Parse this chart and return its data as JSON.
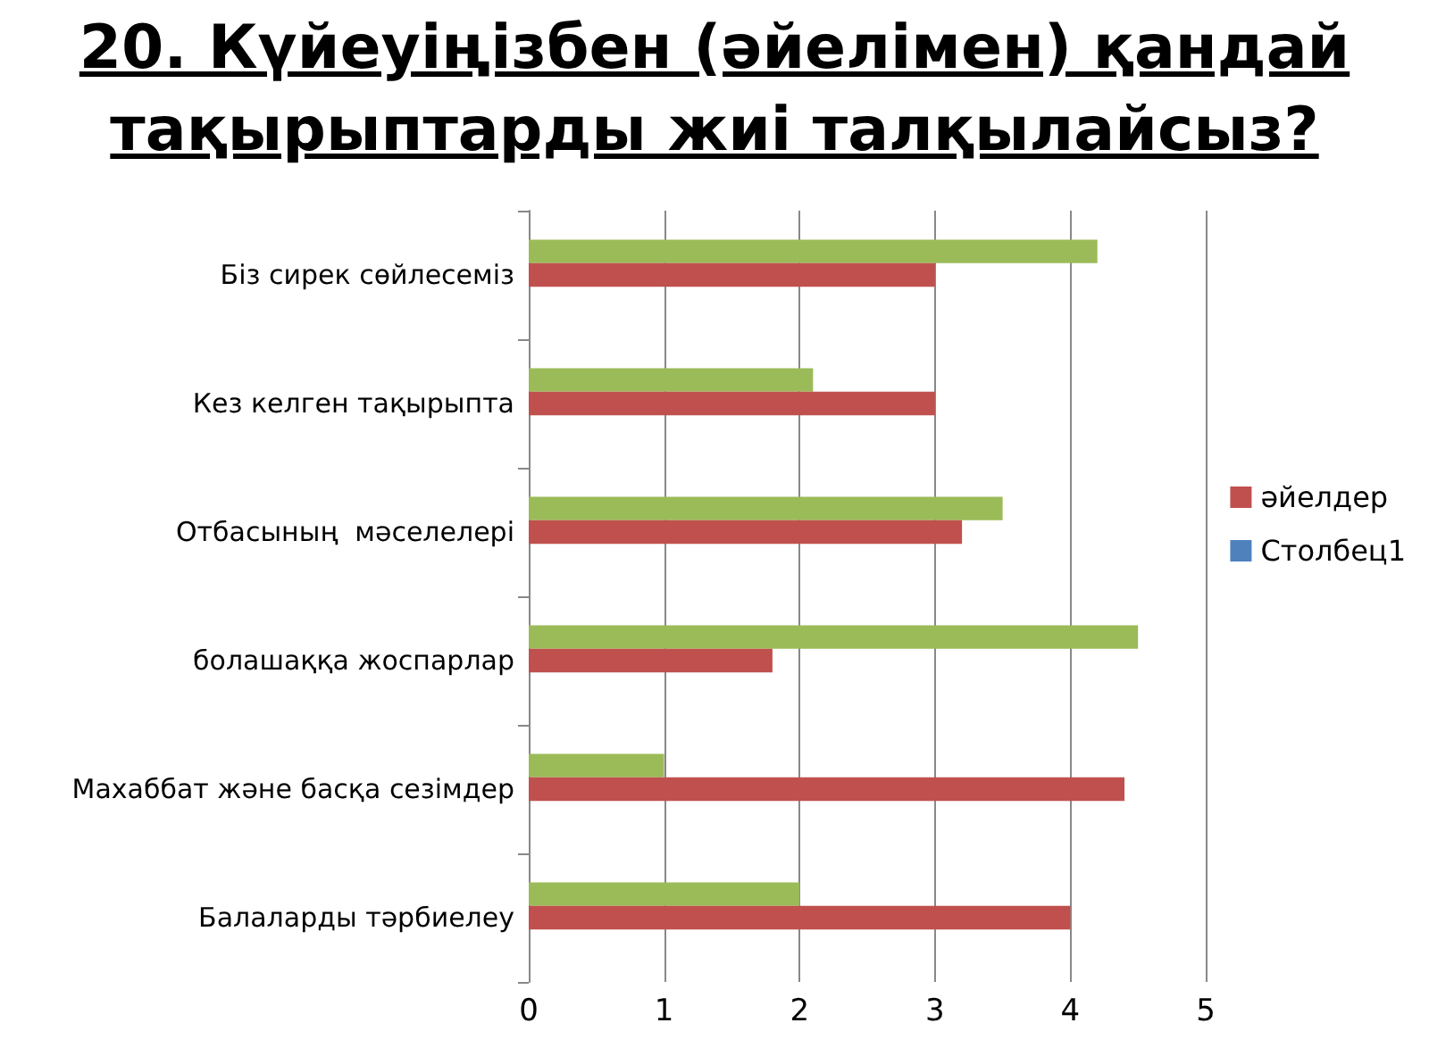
{
  "chart_data": {
    "type": "bar",
    "orientation": "horizontal",
    "title": "20. Күйеуіңізбен (әйелімен) қандай тақырыптарды жиі талқылайсыз?",
    "categories": [
      "Біз сирек сөйлесеміз",
      "Кез келген тақырыпта",
      "Отбасының  мәселелері",
      "болашаққа жоспарлар",
      "Махаббат және басқа сезімдер",
      "Балаларды тәрбиелеу"
    ],
    "series": [
      {
        "color": "#9bbb59",
        "values": [
          4.2,
          2.1,
          3.5,
          4.5,
          1,
          2
        ]
      },
      {
        "name": "әйелдер",
        "color": "#c0504d",
        "values": [
          3,
          3,
          3.2,
          1.8,
          4.4,
          4
        ]
      },
      {
        "name": "Столбец1",
        "color": "#4f81bd",
        "values": [
          null,
          null,
          null,
          null,
          null,
          null
        ]
      }
    ],
    "xlim": [
      0,
      5
    ],
    "xticks": [
      0,
      1,
      2,
      3,
      4,
      5
    ],
    "grid": "x",
    "legend": "right"
  }
}
